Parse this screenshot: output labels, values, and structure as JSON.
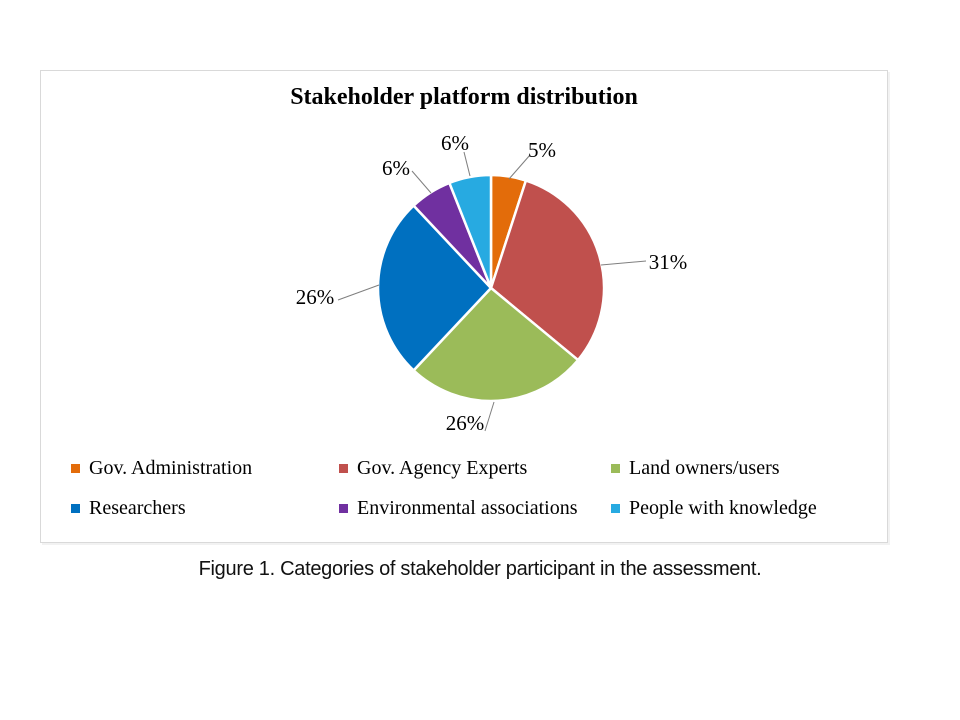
{
  "chart_data": {
    "type": "pie",
    "title": "Stakeholder platform distribution",
    "unit": "%",
    "total": 100,
    "slices": [
      {
        "label": "Gov. Administration",
        "value": 5,
        "pct_label": "5%",
        "color": "#E36C0A"
      },
      {
        "label": "Gov. Agency Experts",
        "value": 31,
        "pct_label": "31%",
        "color": "#C0504D"
      },
      {
        "label": "Land owners/users",
        "value": 26,
        "pct_label": "26%",
        "color": "#9BBB59"
      },
      {
        "label": "Researchers",
        "value": 26,
        "pct_label": "26%",
        "color": "#0070C0"
      },
      {
        "label": "Environmental associations",
        "value": 6,
        "pct_label": "6%",
        "color": "#7030A0"
      },
      {
        "label": "People with knowledge",
        "value": 6,
        "pct_label": "6%",
        "color": "#27AAE1"
      }
    ],
    "start_angle_deg": 0,
    "direction": "clockwise",
    "data_labels": "outside-with-leader-lines",
    "legend_position": "bottom",
    "legend_columns": 3
  },
  "figure": {
    "caption": "Figure 1. Categories of stakeholder participant in the assessment."
  }
}
